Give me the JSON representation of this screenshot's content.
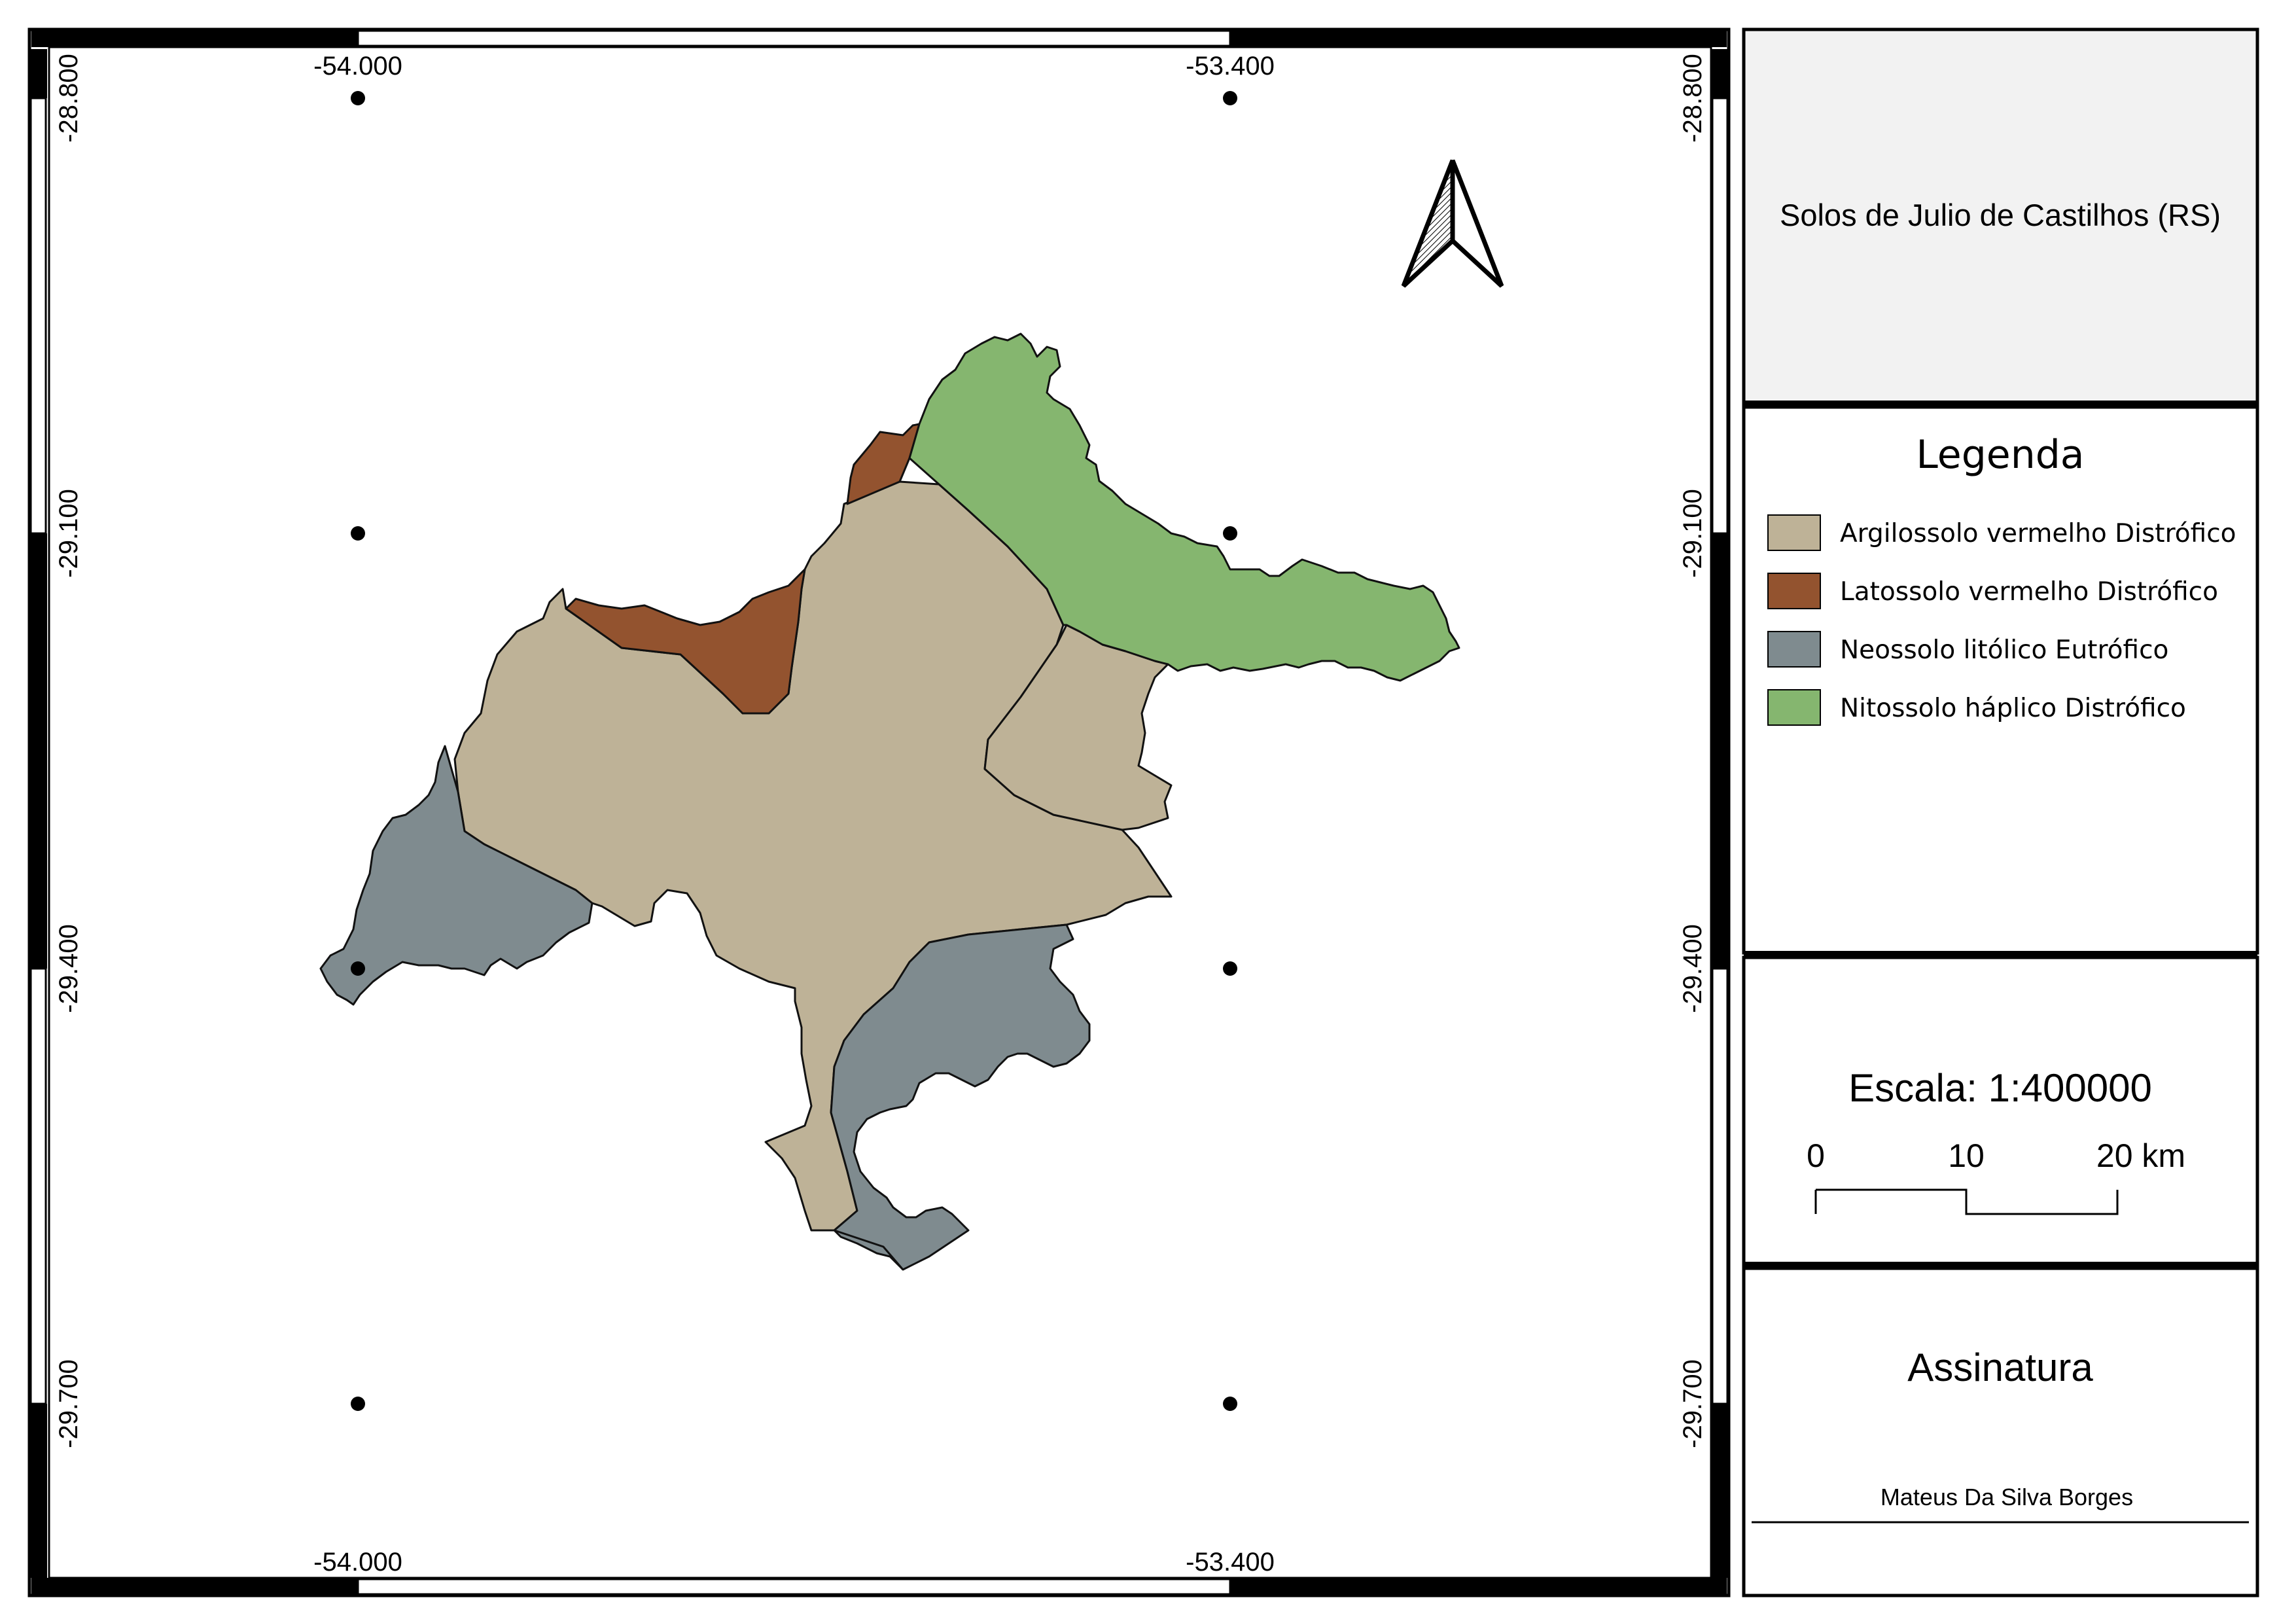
{
  "map": {
    "title": "Solos de Julio de Castilhos (RS)",
    "longitude_labels": [
      "-54.000",
      "-53.400"
    ],
    "latitude_labels": [
      "-28.800",
      "-29.100",
      "-29.400",
      "-29.700"
    ],
    "north_arrow": "north-arrow-icon"
  },
  "legend": {
    "title": "Legenda",
    "items": [
      {
        "label": "Argilossolo vermelho Distrófico",
        "color": "#beb297"
      },
      {
        "label": "Latossolo vermelho Distrófico",
        "color": "#93532f"
      },
      {
        "label": "Neossolo litólico Eutrófico",
        "color": "#7f8b8f"
      },
      {
        "label": "Nitossolo háplico Distrófico",
        "color": "#85b66f"
      }
    ]
  },
  "scale": {
    "title": "Escala: 1:400000",
    "ticks": [
      "0",
      "10",
      "20 km"
    ]
  },
  "signature": {
    "title": "Assinatura",
    "name": "Mateus Da Silva Borges"
  }
}
